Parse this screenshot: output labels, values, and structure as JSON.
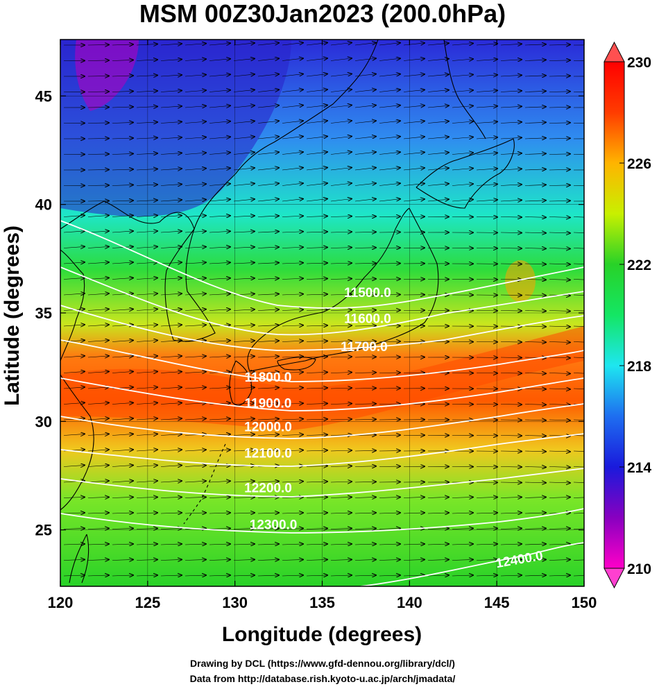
{
  "title": "MSM 00Z30Jan2023 (200.0hPa)",
  "axes": {
    "xlabel": "Longitude (degrees)",
    "ylabel": "Latitude  (degrees)",
    "xlim": [
      120,
      150
    ],
    "ylim": [
      22.4,
      47.6
    ],
    "xticks": [
      120,
      125,
      130,
      135,
      140,
      145,
      150
    ],
    "yticks": [
      25,
      30,
      35,
      40,
      45
    ]
  },
  "colorbar": {
    "min": 210,
    "max": 230,
    "ticks": [
      210,
      214,
      218,
      222,
      226,
      230
    ],
    "colors": [
      "#ff00c8",
      "#8800c0",
      "#1a1adc",
      "#1e6ef0",
      "#1ee6f0",
      "#14e664",
      "#28d228",
      "#c8f000",
      "#ffb400",
      "#ff3c00",
      "#ff0000"
    ]
  },
  "contours": {
    "color": "#ffffff",
    "labels": [
      {
        "text": "11500.0",
        "lon": 137.6,
        "lat": 35.9
      },
      {
        "text": "11600.0",
        "lon": 137.6,
        "lat": 34.7
      },
      {
        "text": "11700.0",
        "lon": 137.4,
        "lat": 33.4
      },
      {
        "text": "11800.0",
        "lon": 131.9,
        "lat": 32.0
      },
      {
        "text": "11900.0",
        "lon": 131.9,
        "lat": 30.8
      },
      {
        "text": "12000.0",
        "lon": 131.9,
        "lat": 29.7
      },
      {
        "text": "12100.0",
        "lon": 131.9,
        "lat": 28.5
      },
      {
        "text": "12200.0",
        "lon": 131.9,
        "lat": 26.9
      },
      {
        "text": "12300.0",
        "lon": 132.2,
        "lat": 25.2
      },
      {
        "text": "12400.0",
        "lon": 146.3,
        "lat": 23.6
      }
    ]
  },
  "credits": {
    "line1": "Drawing by DCL (https://www.gfd-dennou.org/library/dcl/)",
    "line2": "Data from http://database.rish.kyoto-u.ac.jp/arch/jmadata/"
  }
}
